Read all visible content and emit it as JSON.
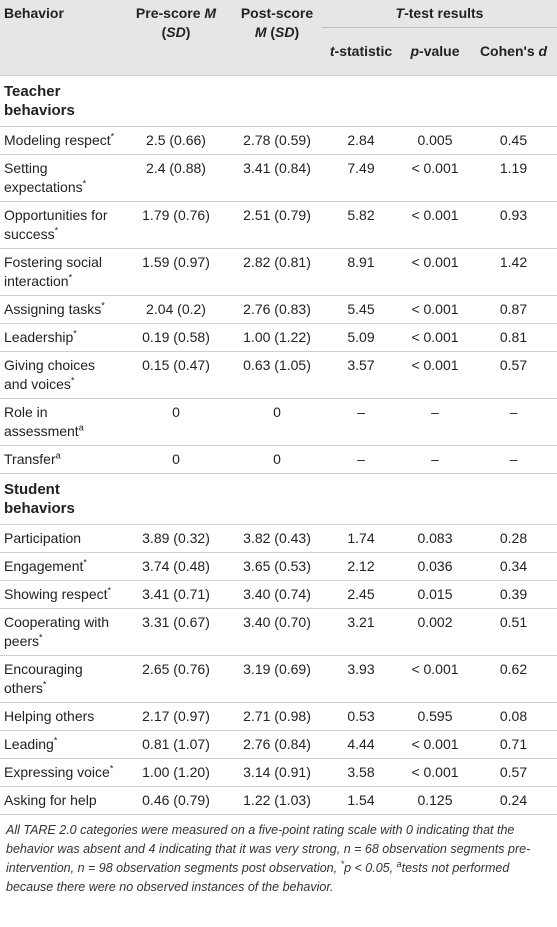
{
  "table": {
    "header": {
      "behavior": [
        {
          "t": "Behavior"
        }
      ],
      "pre": [
        {
          "t": "Pre-score "
        },
        {
          "t": "M",
          "i": true
        },
        {
          "t": " ("
        },
        {
          "t": "SD",
          "i": true
        },
        {
          "t": ")"
        }
      ],
      "post": [
        {
          "t": "Post-score "
        },
        {
          "t": "M",
          "i": true
        },
        {
          "t": " ("
        },
        {
          "t": "SD",
          "i": true
        },
        {
          "t": ")"
        }
      ],
      "ttest": [
        {
          "t": "T",
          "i": true
        },
        {
          "t": "-test results"
        }
      ],
      "sub": [
        [
          {
            "t": "t",
            "i": true
          },
          {
            "t": "-statistic"
          }
        ],
        [
          {
            "t": "p",
            "i": true
          },
          {
            "t": "-value"
          }
        ],
        [
          {
            "t": "Cohen's "
          },
          {
            "t": "d",
            "i": true
          }
        ]
      ]
    },
    "sections": [
      {
        "title": "Teacher behaviors",
        "rows": [
          {
            "behavior": [
              {
                "t": "Modeling respect"
              },
              {
                "t": "*",
                "sup": true
              }
            ],
            "cells": [
              "2.5 (0.66)",
              "2.78 (0.59)",
              "2.84",
              "0.005",
              "0.45"
            ]
          },
          {
            "behavior": [
              {
                "t": "Setting expectations"
              },
              {
                "t": "*",
                "sup": true
              }
            ],
            "cells": [
              "2.4 (0.88)",
              "3.41 (0.84)",
              "7.49",
              "< 0.001",
              "1.19"
            ]
          },
          {
            "behavior": [
              {
                "t": "Opportunities for success"
              },
              {
                "t": "*",
                "sup": true
              }
            ],
            "cells": [
              "1.79 (0.76)",
              "2.51 (0.79)",
              "5.82",
              "< 0.001",
              "0.93"
            ]
          },
          {
            "behavior": [
              {
                "t": "Fostering social interaction"
              },
              {
                "t": "*",
                "sup": true
              }
            ],
            "cells": [
              "1.59 (0.97)",
              "2.82 (0.81)",
              "8.91",
              "< 0.001",
              "1.42"
            ]
          },
          {
            "behavior": [
              {
                "t": "Assigning tasks"
              },
              {
                "t": "*",
                "sup": true
              }
            ],
            "cells": [
              "2.04 (0.2)",
              "2.76 (0.83)",
              "5.45",
              "< 0.001",
              "0.87"
            ]
          },
          {
            "behavior": [
              {
                "t": "Leadership"
              },
              {
                "t": "*",
                "sup": true
              }
            ],
            "cells": [
              "0.19 (0.58)",
              "1.00 (1.22)",
              "5.09",
              "< 0.001",
              "0.81"
            ]
          },
          {
            "behavior": [
              {
                "t": "Giving choices and voices"
              },
              {
                "t": "*",
                "sup": true
              }
            ],
            "cells": [
              "0.15 (0.47)",
              "0.63 (1.05)",
              "3.57",
              "< 0.001",
              "0.57"
            ]
          },
          {
            "behavior": [
              {
                "t": "Role in assessment"
              },
              {
                "t": "a",
                "sup": true
              }
            ],
            "cells": [
              "0",
              "0",
              "–",
              "–",
              "–"
            ]
          },
          {
            "behavior": [
              {
                "t": "Transfer"
              },
              {
                "t": "a",
                "sup": true
              }
            ],
            "cells": [
              "0",
              "0",
              "–",
              "–",
              "–"
            ]
          }
        ]
      },
      {
        "title": "Student behaviors",
        "rows": [
          {
            "behavior": [
              {
                "t": "Participation"
              }
            ],
            "cells": [
              "3.89 (0.32)",
              "3.82 (0.43)",
              "1.74",
              "0.083",
              "0.28"
            ]
          },
          {
            "behavior": [
              {
                "t": "Engagement"
              },
              {
                "t": "*",
                "sup": true
              }
            ],
            "cells": [
              "3.74 (0.48)",
              "3.65 (0.53)",
              "2.12",
              "0.036",
              "0.34"
            ]
          },
          {
            "behavior": [
              {
                "t": "Showing respect"
              },
              {
                "t": "*",
                "sup": true
              }
            ],
            "cells": [
              "3.41 (0.71)",
              "3.40 (0.74)",
              "2.45",
              "0.015",
              "0.39"
            ]
          },
          {
            "behavior": [
              {
                "t": "Cooperating with peers"
              },
              {
                "t": "*",
                "sup": true
              }
            ],
            "cells": [
              "3.31 (0.67)",
              "3.40 (0.70)",
              "3.21",
              "0.002",
              "0.51"
            ]
          },
          {
            "behavior": [
              {
                "t": "Encouraging others"
              },
              {
                "t": "*",
                "sup": true
              }
            ],
            "cells": [
              "2.65 (0.76)",
              "3.19 (0.69)",
              "3.93",
              "< 0.001",
              "0.62"
            ]
          },
          {
            "behavior": [
              {
                "t": "Helping others"
              }
            ],
            "cells": [
              "2.17 (0.97)",
              "2.71 (0.98)",
              "0.53",
              "0.595",
              "0.08"
            ]
          },
          {
            "behavior": [
              {
                "t": "Leading"
              },
              {
                "t": "*",
                "sup": true
              }
            ],
            "cells": [
              "0.81 (1.07)",
              "2.76 (0.84)",
              "4.44",
              "< 0.001",
              "0.71"
            ]
          },
          {
            "behavior": [
              {
                "t": "Expressing voice"
              },
              {
                "t": "*",
                "sup": true
              }
            ],
            "cells": [
              "1.00 (1.20)",
              "3.14 (0.91)",
              "3.58",
              "< 0.001",
              "0.57"
            ]
          },
          {
            "behavior": [
              {
                "t": "Asking for help"
              }
            ],
            "cells": [
              "0.46 (0.79)",
              "1.22 (1.03)",
              "1.54",
              "0.125",
              "0.24"
            ]
          }
        ]
      }
    ],
    "footnote": [
      {
        "t": "All TARE 2.0 categories were measured on a five-point rating scale with 0 indicating that the behavior was absent and 4 indicating that it was very strong, n = 68 observation segments pre-intervention, n = 98 observation segments post observation, "
      },
      {
        "t": "*",
        "sup": true
      },
      {
        "t": "p < 0.05, "
      },
      {
        "t": "a",
        "sup": true
      },
      {
        "t": "tests not performed because there were no observed instances of the behavior."
      }
    ]
  }
}
